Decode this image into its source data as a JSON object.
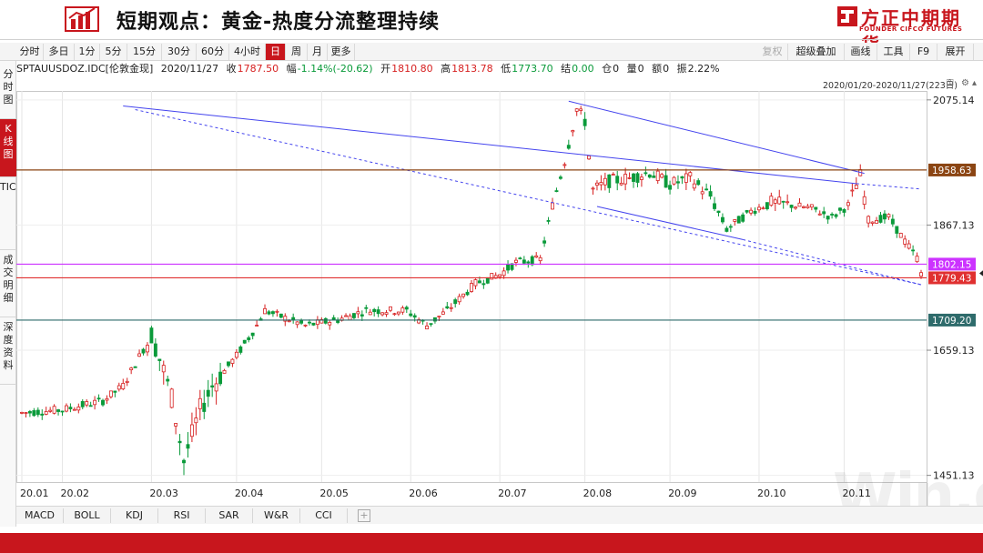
{
  "header": {
    "title": "短期观点：黄金-热度分流整理持续",
    "brand_cn": "方正中期期货",
    "brand_en": "FOUNDER CIFCO FUTURES"
  },
  "toolbar": {
    "left": [
      "分时",
      "多日",
      "1分",
      "5分",
      "15分",
      "30分",
      "60分",
      "4小时",
      "日",
      "周",
      "月",
      "更多"
    ],
    "active": "日",
    "right": [
      "复权",
      "超级叠加",
      "画线",
      "工具",
      "F9",
      "展开"
    ]
  },
  "info": {
    "symbol": "SPTAUUSDOZ.IDC[伦敦金现]",
    "date": "2020/11/27",
    "close_label": "收",
    "close": "1787.50",
    "change_label": "幅",
    "change": "-1.14%(-20.62)",
    "open_label": "开",
    "open": "1810.80",
    "high_label": "高",
    "high": "1813.78",
    "low_label": "低",
    "low": "1773.70",
    "settle_label": "结",
    "settle": "0.00",
    "oi_label": "仓",
    "oi": "0",
    "vol_label": "量",
    "vol": "0",
    "amount_label": "额",
    "amount": "0",
    "amplitude_label": "振",
    "amplitude": "2.22%",
    "range": "2020/01/20-2020/11/27(223日)"
  },
  "sidetabs": [
    "分时图",
    "K线图",
    "TICK",
    "成交明细",
    "深度资料"
  ],
  "indicators": [
    "MACD",
    "BOLL",
    "KDJ",
    "RSI",
    "SAR",
    "W&R",
    "CCI"
  ],
  "watermark": "Win.d",
  "colors": {
    "up": "#d61f1f",
    "down": "#0a9a3a",
    "accent": "#c8161d"
  },
  "chart_data": {
    "type": "candlestick",
    "y_ticks": [
      2075.14,
      1867.13,
      1659.13,
      1451.13
    ],
    "ylim": [
      1440,
      2090
    ],
    "x_tick_labels": [
      "20.01",
      "20.02",
      "20.03",
      "20.04",
      "20.05",
      "20.06",
      "20.07",
      "20.08",
      "20.09",
      "20.10",
      "20.11"
    ],
    "levels": [
      {
        "value": 1958.63,
        "label": "1958.63",
        "color": "#8b4513"
      },
      {
        "value": 1802.15,
        "label": "1802.15",
        "color": "#cc33ff"
      },
      {
        "value": 1779.43,
        "label": "1779.43",
        "color": "#e03030"
      },
      {
        "value": 1709.2,
        "label": "1709.20",
        "color": "#2e6b6b"
      }
    ],
    "trendlines": [
      {
        "from": {
          "day": 25,
          "price": 2065
        },
        "to": {
          "day": 206,
          "price": 1936
        },
        "color": "#4444ee",
        "style": "solid"
      },
      {
        "from": {
          "day": 206,
          "price": 1936
        },
        "to": {
          "day": 222,
          "price": 1927
        },
        "color": "#4444ee",
        "style": "dash"
      },
      {
        "from": {
          "day": 135,
          "price": 2073
        },
        "to": {
          "day": 208,
          "price": 1953
        },
        "color": "#4444ee",
        "style": "solid"
      },
      {
        "from": {
          "day": 142,
          "price": 1898
        },
        "to": {
          "day": 178,
          "price": 1843
        },
        "color": "#4444ee",
        "style": "solid"
      },
      {
        "from": {
          "day": 178,
          "price": 1843
        },
        "to": {
          "day": 222,
          "price": 1768
        },
        "color": "#4444ee",
        "style": "dash"
      }
    ],
    "anchor_points": [
      {
        "day": 0,
        "price": 1555
      },
      {
        "day": 10,
        "price": 1560
      },
      {
        "day": 20,
        "price": 1575
      },
      {
        "day": 25,
        "price": 1600
      },
      {
        "day": 32,
        "price": 1685
      },
      {
        "day": 35,
        "price": 1625
      },
      {
        "day": 37,
        "price": 1580
      },
      {
        "day": 40,
        "price": 1475
      },
      {
        "day": 44,
        "price": 1560
      },
      {
        "day": 47,
        "price": 1600
      },
      {
        "day": 53,
        "price": 1650
      },
      {
        "day": 58,
        "price": 1700
      },
      {
        "day": 60,
        "price": 1725
      },
      {
        "day": 70,
        "price": 1700
      },
      {
        "day": 78,
        "price": 1710
      },
      {
        "day": 85,
        "price": 1725
      },
      {
        "day": 95,
        "price": 1725
      },
      {
        "day": 100,
        "price": 1700
      },
      {
        "day": 105,
        "price": 1725
      },
      {
        "day": 112,
        "price": 1770
      },
      {
        "day": 118,
        "price": 1785
      },
      {
        "day": 122,
        "price": 1805
      },
      {
        "day": 128,
        "price": 1810
      },
      {
        "day": 131,
        "price": 1900
      },
      {
        "day": 134,
        "price": 1975
      },
      {
        "day": 137,
        "price": 2060
      },
      {
        "day": 139,
        "price": 2040
      },
      {
        "day": 141,
        "price": 1925
      },
      {
        "day": 145,
        "price": 1940
      },
      {
        "day": 150,
        "price": 1945
      },
      {
        "day": 155,
        "price": 1955
      },
      {
        "day": 160,
        "price": 1935
      },
      {
        "day": 165,
        "price": 1945
      },
      {
        "day": 170,
        "price": 1915
      },
      {
        "day": 174,
        "price": 1860
      },
      {
        "day": 180,
        "price": 1890
      },
      {
        "day": 185,
        "price": 1905
      },
      {
        "day": 190,
        "price": 1900
      },
      {
        "day": 195,
        "price": 1895
      },
      {
        "day": 200,
        "price": 1880
      },
      {
        "day": 204,
        "price": 1900
      },
      {
        "day": 207,
        "price": 1950
      },
      {
        "day": 209,
        "price": 1875
      },
      {
        "day": 214,
        "price": 1880
      },
      {
        "day": 218,
        "price": 1840
      },
      {
        "day": 221,
        "price": 1812
      },
      {
        "day": 222,
        "price": 1787
      }
    ]
  }
}
